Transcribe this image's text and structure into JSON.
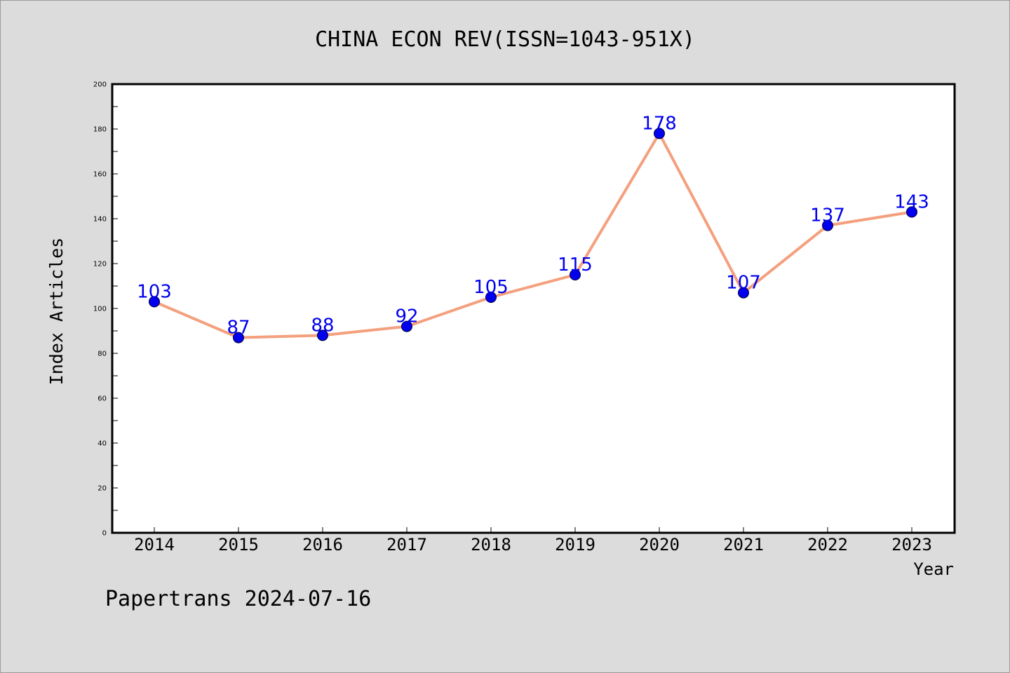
{
  "chart_data": {
    "type": "line",
    "title": "CHINA ECON REV(ISSN=1043-951X)",
    "xlabel": "Year",
    "ylabel": "Index Articles",
    "categories": [
      "2014",
      "2015",
      "2016",
      "2017",
      "2018",
      "2019",
      "2020",
      "2021",
      "2022",
      "2023"
    ],
    "values": [
      103,
      87,
      88,
      92,
      105,
      115,
      178,
      107,
      137,
      143
    ],
    "ylim": [
      0,
      200
    ],
    "yticks": [
      0,
      20,
      40,
      60,
      80,
      100,
      120,
      140,
      160,
      180,
      200
    ],
    "grid": false,
    "line_color": "#f4a07e",
    "marker_color": "#0000ee",
    "label_color": "#0000ee"
  },
  "footer": "Papertrans 2024-07-16"
}
